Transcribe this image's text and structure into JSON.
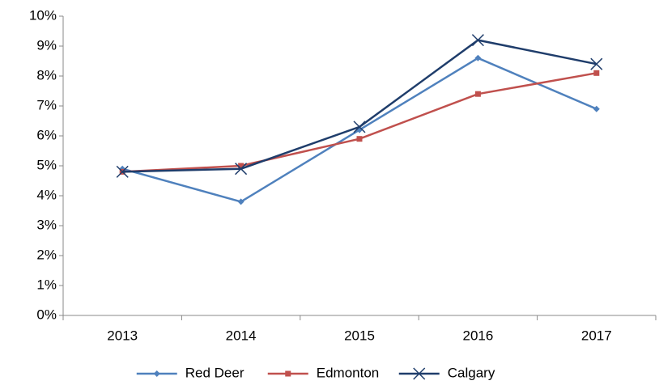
{
  "chart_data": {
    "type": "line",
    "categories": [
      "2013",
      "2014",
      "2015",
      "2016",
      "2017"
    ],
    "series": [
      {
        "name": "Red Deer",
        "color": "#4f81bd",
        "marker": "diamond",
        "values": [
          4.9,
          3.8,
          6.2,
          8.6,
          6.9
        ]
      },
      {
        "name": "Edmonton",
        "color": "#c0504d",
        "marker": "square",
        "values": [
          4.8,
          5.0,
          5.9,
          7.4,
          8.1
        ]
      },
      {
        "name": "Calgary",
        "color": "#1f3d6b",
        "marker": "x",
        "values": [
          4.8,
          4.9,
          6.3,
          9.2,
          8.4
        ]
      }
    ],
    "ylim": [
      0,
      10
    ],
    "yticks": [
      {
        "value": 0,
        "label": "0%"
      },
      {
        "value": 1,
        "label": "1%"
      },
      {
        "value": 2,
        "label": "2%"
      },
      {
        "value": 3,
        "label": "3%"
      },
      {
        "value": 4,
        "label": "4%"
      },
      {
        "value": 5,
        "label": "5%"
      },
      {
        "value": 6,
        "label": "6%"
      },
      {
        "value": 7,
        "label": "7%"
      },
      {
        "value": 8,
        "label": "8%"
      },
      {
        "value": 9,
        "label": "9%"
      },
      {
        "value": 10,
        "label": "10%"
      }
    ],
    "grid": false,
    "legend": "bottom"
  }
}
